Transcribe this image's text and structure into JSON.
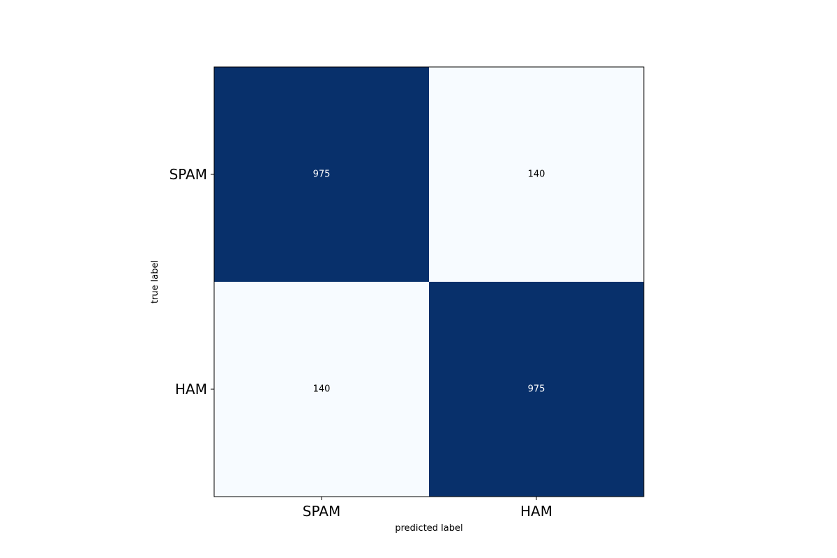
{
  "chart_data": {
    "type": "heatmap",
    "colormap": "Blues",
    "colors": {
      "high": "#08306b",
      "low": "#f7fbff",
      "frame": "#000000"
    },
    "xlabel": "predicted label",
    "ylabel": "true label",
    "x_categories": [
      "SPAM",
      "HAM"
    ],
    "y_categories": [
      "SPAM",
      "HAM"
    ],
    "values": [
      [
        975,
        140
      ],
      [
        140,
        975
      ]
    ],
    "grid": false,
    "legend": "none"
  }
}
